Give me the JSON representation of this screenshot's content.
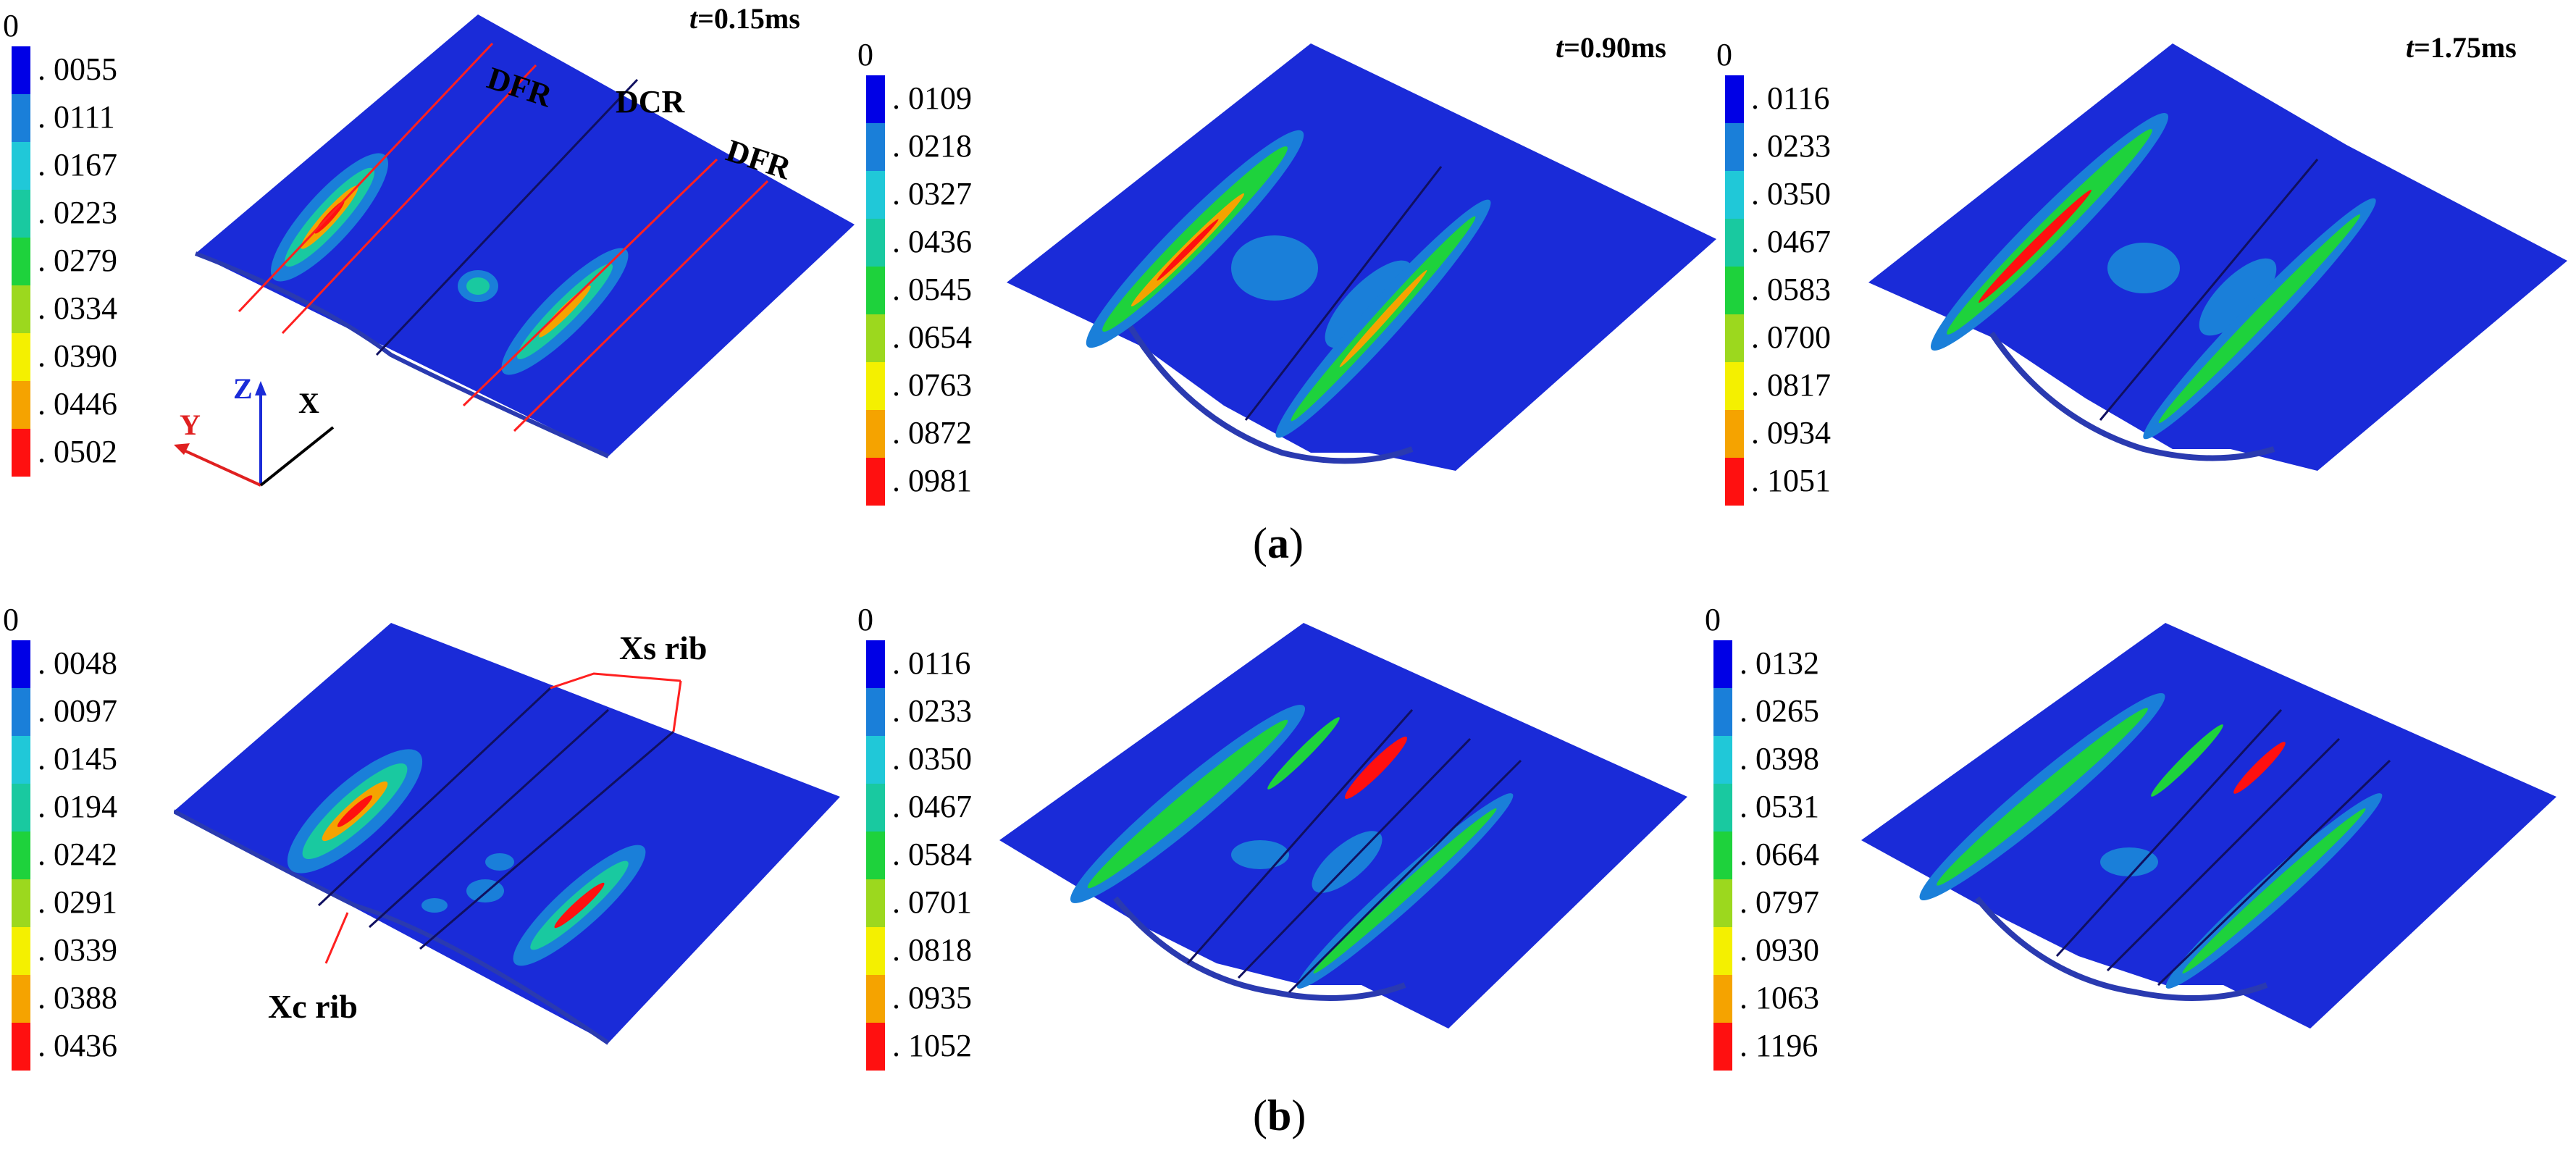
{
  "colors": {
    "plate": "#1a2bd8",
    "plate_side": "#2a3ab0",
    "ribline": "#101060",
    "redline": "#ff2020",
    "scale": [
      "#0000e6",
      "#1a7fd9",
      "#20c8d8",
      "#19c9a0",
      "#1ed23c",
      "#9cd81e",
      "#f4f000",
      "#f5a300",
      "#ff1010"
    ]
  },
  "row_a": {
    "caption": "a",
    "panels": [
      {
        "time_prefix": "t",
        "time_value": "=0.15ms",
        "legend_zero": "0",
        "legend": [
          ". 0055",
          ". 0111",
          ". 0167",
          ". 0223",
          ". 0279",
          ". 0334",
          ". 0390",
          ". 0446",
          ". 0502"
        ]
      },
      {
        "time_prefix": "t",
        "time_value": "=0.90ms",
        "legend_zero": "0",
        "legend": [
          ". 0109",
          ". 0218",
          ". 0327",
          ". 0436",
          ". 0545",
          ". 0654",
          ". 0763",
          ". 0872",
          ". 0981"
        ]
      },
      {
        "time_prefix": "t",
        "time_value": "=1.75ms",
        "legend_zero": "0",
        "legend": [
          ". 0116",
          ". 0233",
          ". 0350",
          ". 0467",
          ". 0583",
          ". 0700",
          ". 0817",
          ". 0934",
          ". 1051"
        ]
      }
    ],
    "labels": {
      "dfr_left": "DFR",
      "dcr": "DCR",
      "dfr_right": "DFR"
    },
    "axes": {
      "z": "Z",
      "y": "Y",
      "x": "X"
    }
  },
  "row_b": {
    "caption": "b",
    "panels": [
      {
        "legend_zero": "0",
        "legend": [
          ". 0048",
          ". 0097",
          ". 0145",
          ". 0194",
          ". 0242",
          ". 0291",
          ". 0339",
          ". 0388",
          ". 0436"
        ]
      },
      {
        "legend_zero": "0",
        "legend": [
          ". 0116",
          ". 0233",
          ". 0350",
          ". 0467",
          ". 0584",
          ". 0701",
          ". 0818",
          ". 0935",
          ". 1052"
        ]
      },
      {
        "legend_zero": "0",
        "legend": [
          ". 0132",
          ". 0265",
          ". 0398",
          ". 0531",
          ". 0664",
          ". 0797",
          ". 0930",
          ". 1063",
          ". 1196"
        ]
      }
    ],
    "labels": {
      "xs_rib": "Xs rib",
      "xc_rib": "Xc rib"
    }
  }
}
